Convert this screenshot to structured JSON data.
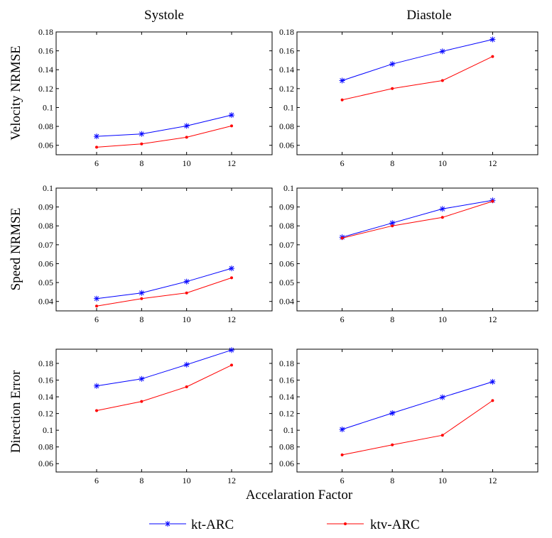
{
  "figure": {
    "column_titles": [
      "Systole",
      "Diastole"
    ],
    "row_labels": [
      "Velocity NRMSE",
      "Speed NRMSE",
      "Direction Error"
    ],
    "xlabel": "Accelaration Factor",
    "series_colors": {
      "kt-ARC": "#0000ff",
      "ktv-ARC": "#ff0000"
    },
    "legend": [
      {
        "name": "kt-ARC",
        "marker": "asterisk",
        "color": "#0000ff"
      },
      {
        "name": "ktv-ARC",
        "marker": "dot",
        "color": "#ff0000"
      }
    ]
  },
  "chart_data": [
    {
      "type": "line",
      "title": "Systole",
      "ylabel": "Velocity NRMSE",
      "xlabel": "",
      "x": [
        6,
        8,
        10,
        12
      ],
      "xlim": [
        4.2,
        13.8
      ],
      "ylim": [
        0.05,
        0.18
      ],
      "xticks": [
        "6",
        "8",
        "10",
        "12"
      ],
      "yticks": [
        "0.06",
        "0.08",
        "0.1",
        "0.12",
        "0.14",
        "0.16",
        "0.18"
      ],
      "series": [
        {
          "name": "kt-ARC",
          "values": [
            0.0695,
            0.072,
            0.0805,
            0.092
          ]
        },
        {
          "name": "ktv-ARC",
          "values": [
            0.058,
            0.0615,
            0.0685,
            0.0805
          ]
        }
      ]
    },
    {
      "type": "line",
      "title": "Diastole",
      "ylabel": "Velocity NRMSE",
      "xlabel": "",
      "x": [
        6,
        8,
        10,
        12
      ],
      "xlim": [
        4.2,
        13.8
      ],
      "ylim": [
        0.05,
        0.18
      ],
      "xticks": [
        "6",
        "8",
        "10",
        "12"
      ],
      "yticks": [
        "0.06",
        "0.08",
        "0.1",
        "0.12",
        "0.14",
        "0.16",
        "0.18"
      ],
      "series": [
        {
          "name": "kt-ARC",
          "values": [
            0.1285,
            0.146,
            0.1595,
            0.172
          ]
        },
        {
          "name": "ktv-ARC",
          "values": [
            0.108,
            0.12,
            0.1285,
            0.154
          ]
        }
      ]
    },
    {
      "type": "line",
      "title": "Systole",
      "ylabel": "Speed NRMSE",
      "xlabel": "",
      "x": [
        6,
        8,
        10,
        12
      ],
      "xlim": [
        4.2,
        13.8
      ],
      "ylim": [
        0.035,
        0.1
      ],
      "xticks": [
        "6",
        "8",
        "10",
        "12"
      ],
      "yticks": [
        "0.04",
        "0.05",
        "0.06",
        "0.07",
        "0.08",
        "0.09",
        "0.1"
      ],
      "series": [
        {
          "name": "kt-ARC",
          "values": [
            0.0415,
            0.0445,
            0.0505,
            0.0575
          ]
        },
        {
          "name": "ktv-ARC",
          "values": [
            0.0375,
            0.0415,
            0.0445,
            0.0525
          ]
        }
      ]
    },
    {
      "type": "line",
      "title": "Diastole",
      "ylabel": "Speed NRMSE",
      "xlabel": "",
      "x": [
        6,
        8,
        10,
        12
      ],
      "xlim": [
        4.2,
        13.8
      ],
      "ylim": [
        0.035,
        0.1
      ],
      "xticks": [
        "6",
        "8",
        "10",
        "12"
      ],
      "yticks": [
        "0.04",
        "0.05",
        "0.06",
        "0.07",
        "0.08",
        "0.09",
        "0.1"
      ],
      "series": [
        {
          "name": "kt-ARC",
          "values": [
            0.074,
            0.0815,
            0.089,
            0.0935
          ]
        },
        {
          "name": "ktv-ARC",
          "values": [
            0.0735,
            0.08,
            0.0845,
            0.093
          ]
        }
      ]
    },
    {
      "type": "line",
      "title": "Systole",
      "ylabel": "Direction Error",
      "xlabel": "Accelaration Factor",
      "x": [
        6,
        8,
        10,
        12
      ],
      "xlim": [
        4.2,
        13.8
      ],
      "ylim": [
        0.05,
        0.197
      ],
      "xticks": [
        "6",
        "8",
        "10",
        "12"
      ],
      "yticks": [
        "0.06",
        "0.08",
        "0.1",
        "0.12",
        "0.14",
        "0.16",
        "0.18"
      ],
      "series": [
        {
          "name": "kt-ARC",
          "values": [
            0.153,
            0.1615,
            0.1785,
            0.196
          ]
        },
        {
          "name": "ktv-ARC",
          "values": [
            0.1235,
            0.1345,
            0.152,
            0.178
          ]
        }
      ]
    },
    {
      "type": "line",
      "title": "Diastole",
      "ylabel": "Direction Error",
      "xlabel": "Accelaration Factor",
      "x": [
        6,
        8,
        10,
        12
      ],
      "xlim": [
        4.2,
        13.8
      ],
      "ylim": [
        0.05,
        0.197
      ],
      "xticks": [
        "6",
        "8",
        "10",
        "12"
      ],
      "yticks": [
        "0.06",
        "0.08",
        "0.1",
        "0.12",
        "0.14",
        "0.16",
        "0.18"
      ],
      "series": [
        {
          "name": "kt-ARC",
          "values": [
            0.101,
            0.1205,
            0.1395,
            0.158
          ]
        },
        {
          "name": "ktv-ARC",
          "values": [
            0.0705,
            0.0825,
            0.094,
            0.1355
          ]
        }
      ]
    }
  ]
}
